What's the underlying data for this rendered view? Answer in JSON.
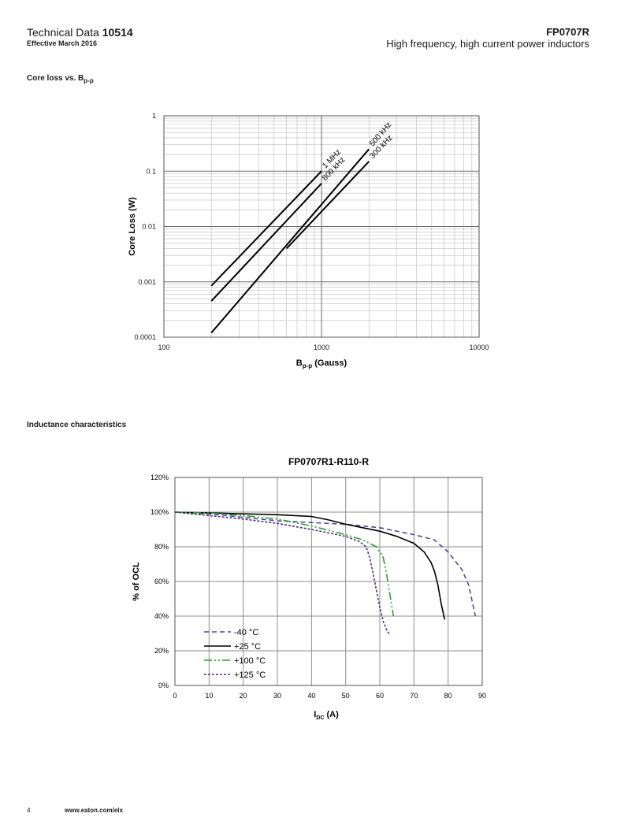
{
  "header": {
    "doc_label": "Technical Data",
    "doc_number": "10514",
    "effective": "Effective March 2016",
    "part_number": "FP0707R",
    "description": "High frequency, high current power inductors"
  },
  "sections": {
    "core_loss_title": "Core loss vs. B",
    "core_loss_sub": "p-p",
    "inductance_title": "Inductance characteristics"
  },
  "footer": {
    "page": "4",
    "url": "www.eaton.com/elx"
  },
  "chart_data": [
    {
      "type": "line",
      "title": "",
      "xscale": "log",
      "yscale": "log",
      "xlabel_main": "B",
      "xlabel_sub": "p-p",
      "xlabel_tail": " (Gauss)",
      "ylabel": "Core Loss  (W)",
      "xlim": [
        100,
        10000
      ],
      "ylim": [
        0.0001,
        1
      ],
      "x_ticks": [
        "100",
        "1000",
        "10000"
      ],
      "y_ticks": [
        "0.0001",
        "0.001",
        "0.01",
        "0.1",
        "1"
      ],
      "series": [
        {
          "name": "1 MHz",
          "x": [
            200,
            1000
          ],
          "y": [
            0.00085,
            0.1
          ]
        },
        {
          "name": "800 kHz",
          "x": [
            200,
            1000
          ],
          "y": [
            0.00045,
            0.06
          ]
        },
        {
          "name": "500 kHz",
          "x": [
            200,
            2000
          ],
          "y": [
            0.00012,
            0.25
          ]
        },
        {
          "name": "300 kHz",
          "x": [
            600,
            2000
          ],
          "y": [
            0.004,
            0.15
          ]
        }
      ]
    },
    {
      "type": "line",
      "title": "FP0707R1-R110-R",
      "xlabel_main": "I",
      "xlabel_sub": "DC",
      "xlabel_tail": " (A)",
      "ylabel": "% of OCL",
      "xlim": [
        0,
        90
      ],
      "ylim": [
        0,
        120
      ],
      "x_ticks": [
        "0",
        "10",
        "20",
        "30",
        "40",
        "50",
        "60",
        "70",
        "80",
        "90"
      ],
      "y_ticks": [
        "0%",
        "20%",
        "40%",
        "60%",
        "80%",
        "100%",
        "120%"
      ],
      "series": [
        {
          "name": "-40 °C",
          "color": "#4d4d99",
          "dash": "6,4",
          "x": [
            0,
            10,
            20,
            30,
            40,
            50,
            60,
            70,
            76,
            80,
            84,
            86,
            88
          ],
          "y": [
            100,
            99,
            97,
            95,
            94,
            93,
            91,
            87,
            84,
            77,
            67,
            58,
            40
          ]
        },
        {
          "name": "+25 °C",
          "color": "#000000",
          "dash": "",
          "x": [
            0,
            10,
            20,
            30,
            40,
            45,
            50,
            55,
            60,
            65,
            70,
            73,
            75,
            76,
            77,
            78,
            79
          ],
          "y": [
            100,
            99.5,
            99,
            98.5,
            97.5,
            95.5,
            93,
            91,
            89,
            86,
            82,
            77,
            71,
            66,
            58,
            47,
            38
          ]
        },
        {
          "name": "+100 °C",
          "color": "#2e9e2e",
          "dash": "10,3,2,3,2,3",
          "x": [
            0,
            10,
            20,
            30,
            40,
            50,
            55,
            59,
            61,
            62,
            63,
            64
          ],
          "y": [
            100,
            99.5,
            98,
            96,
            92,
            87,
            84,
            80,
            74,
            64,
            52,
            40
          ]
        },
        {
          "name": "+125 °C",
          "color": "#5a2d82",
          "dash": "3,2",
          "x": [
            0,
            10,
            20,
            30,
            40,
            50,
            54,
            56,
            57,
            58,
            59,
            60,
            61,
            62,
            63
          ],
          "y": [
            100,
            98,
            96,
            93.5,
            90,
            86,
            83,
            80,
            74,
            65,
            55,
            45,
            37,
            32,
            29
          ]
        }
      ]
    }
  ]
}
